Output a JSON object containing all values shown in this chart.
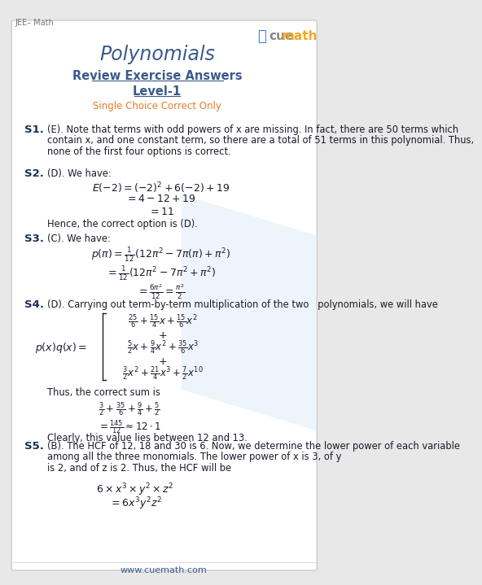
{
  "title": "Polynomials",
  "header_label": "JEE– Math",
  "subtitle": "Review Exercise Answers",
  "level": "Level-1",
  "subtitle2": "Single Choice Correct Only",
  "bg_color": "#ffffff",
  "border_color": "#cccccc",
  "title_color": "#3a5a8c",
  "subtitle_color": "#3a5a8c",
  "level_color": "#3a5a8c",
  "subtitle2_color": "#e87c2b",
  "text_color": "#1a1a2e",
  "dark_blue": "#1a2e5a",
  "footer_color": "#3a5a8c",
  "footer_text": "www.cuemath.com",
  "s1_label": "S1.",
  "s1_text": "(E). Note that terms with odd powers of x are missing. In fact, there are 50 terms which\ncontain x, and one constant term, so there are a total of 51 terms in this polynomial. Thus,\nnone of the first four options is correct.",
  "s2_label": "S2.",
  "s2_intro": "(D). We have:",
  "s2_conclusion": "Hence, the correct option is (D).",
  "s3_label": "S3.",
  "s3_intro": "(C). We have:",
  "s4_label": "S4.",
  "s4_intro": "(D). Carrying out term-by-term multiplication of the two   polynomials, we will have",
  "s4_sum_label": "Thus, the correct sum is",
  "s4_conclusion": "Clearly, this value lies between 12 and 13.",
  "s5_label": "S5.",
  "s5_text": "(B). The HCF of 12, 18 and 30 is 6. Now, we determine the lower power of each variable\namong all the three monomials. The lower power of x is 3, of y\nis 2, and of z is 2. Thus, the HCF will be"
}
